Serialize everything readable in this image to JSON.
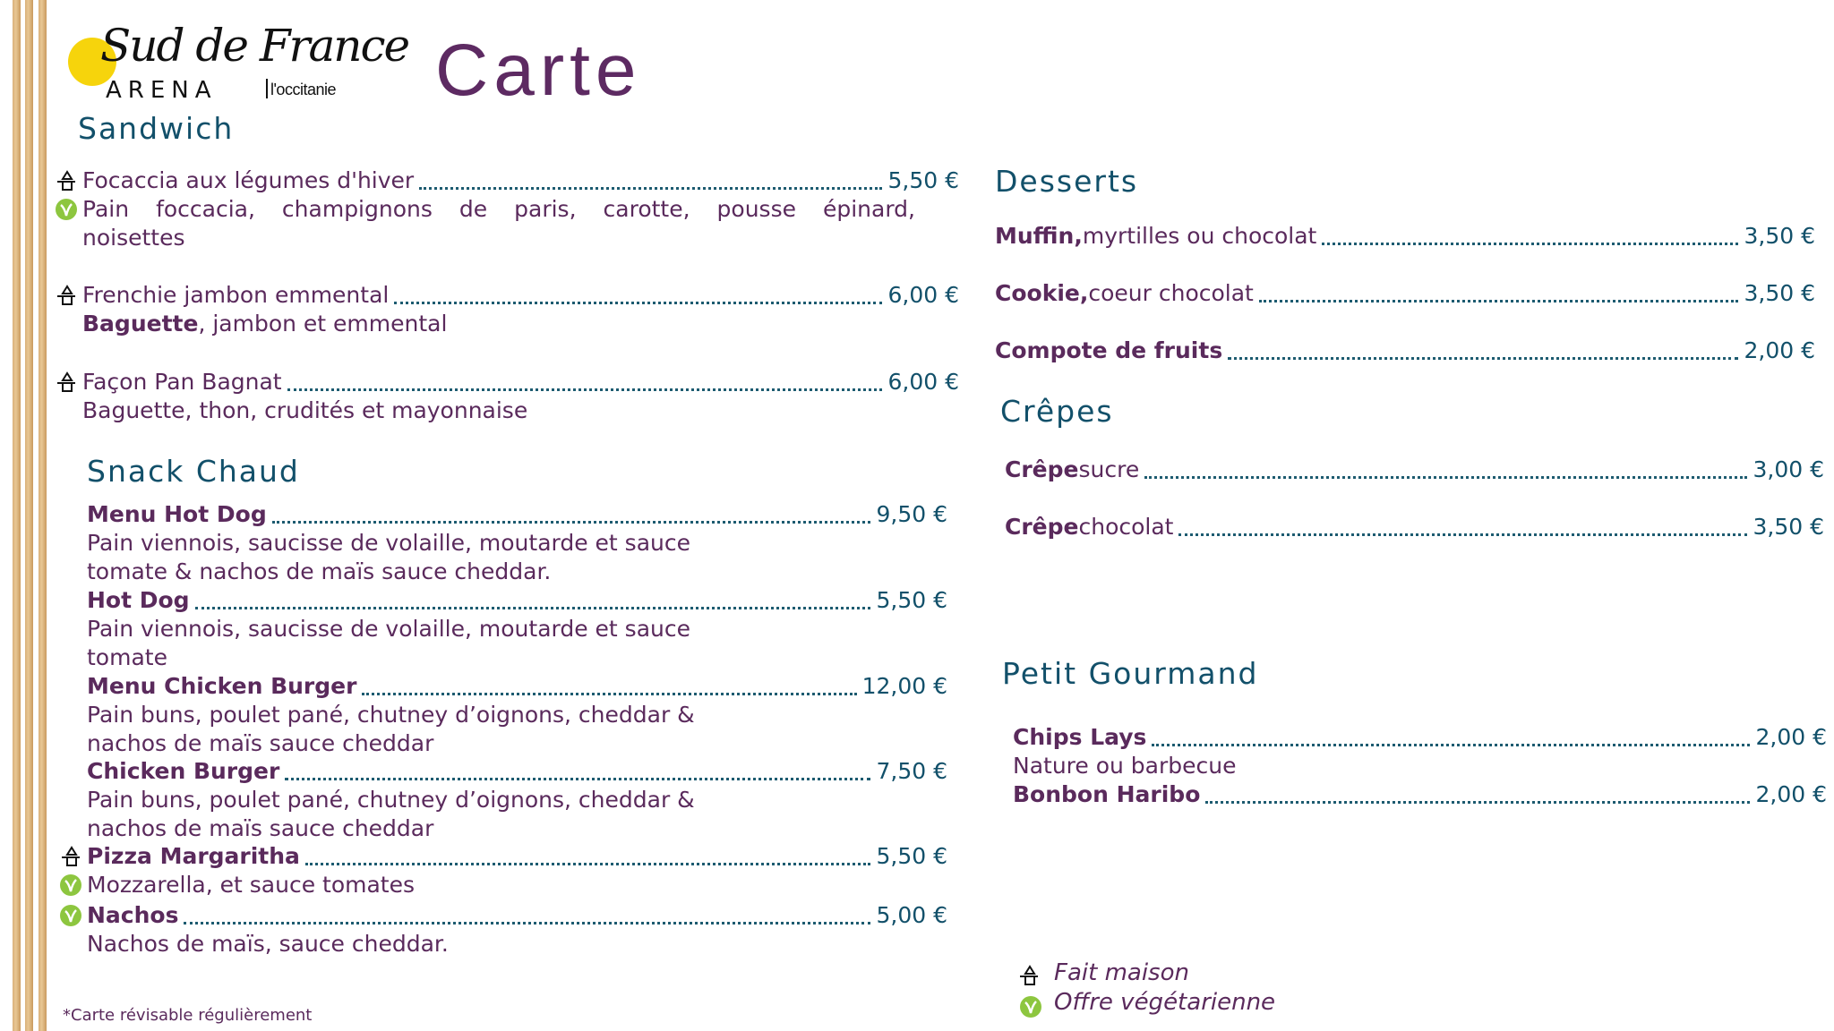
{
  "logo": {
    "script": "Sud de France",
    "arena": "ARENA",
    "region": "l'occitanie",
    "sun_color": "#f6d40c"
  },
  "title": "Carte",
  "colors": {
    "text": "#5a2a5c",
    "heading": "#12506a",
    "veg": "#8dc63f"
  },
  "sandwich": {
    "heading": "Sandwich",
    "items": [
      {
        "name": "Focaccia aux légumes d'hiver",
        "price": "5,50 €",
        "icons": [
          "fait-maison",
          "vegetarian"
        ],
        "desc": [
          "Pain foccacia, champignons de paris, carotte, pousse épinard,",
          "noisettes"
        ]
      },
      {
        "name": "Frenchie jambon emmental",
        "price": "6,00 €",
        "icons": [
          "fait-maison"
        ],
        "desc_bold": "Baguette",
        "desc": [
          ", jambon et emmental"
        ]
      },
      {
        "name": "Façon Pan Bagnat",
        "price": "6,00 €",
        "icons": [
          "fait-maison"
        ],
        "desc": [
          "Baguette, thon, crudités et mayonnaise"
        ]
      }
    ]
  },
  "snack": {
    "heading": "Snack Chaud",
    "items": [
      {
        "name": "Menu Hot Dog",
        "price": "9,50 €",
        "icons": [],
        "desc": [
          "Pain viennois, saucisse de volaille, moutarde et sauce",
          "tomate & nachos de maïs sauce cheddar."
        ]
      },
      {
        "name": "Hot Dog",
        "price": "5,50 €",
        "icons": [],
        "desc": [
          "Pain viennois, saucisse de volaille, moutarde et sauce",
          "tomate"
        ]
      },
      {
        "name": "Menu Chicken Burger",
        "price": "12,00 €",
        "icons": [],
        "desc": [
          "Pain buns, poulet pané, chutney d’oignons, cheddar &",
          "nachos de maïs sauce cheddar"
        ]
      },
      {
        "name": "Chicken Burger",
        "price": "7,50 €",
        "icons": [],
        "desc": [
          "Pain buns, poulet pané, chutney d’oignons, cheddar &",
          "nachos de maïs sauce cheddar"
        ]
      },
      {
        "name": "Pizza Margaritha",
        "price": "5,50 €",
        "icons": [
          "fait-maison",
          "vegetarian"
        ],
        "desc": [
          "Mozzarella, et sauce tomates"
        ]
      },
      {
        "name": "Nachos",
        "price": "5,00 €",
        "icons": [
          "vegetarian"
        ],
        "desc": [
          "Nachos de maïs, sauce cheddar."
        ]
      }
    ]
  },
  "desserts": {
    "heading": "Desserts",
    "items": [
      {
        "name": "Muffin,",
        "rest": " myrtilles ou chocolat",
        "price": "3,50 €"
      },
      {
        "name": "Cookie,",
        "rest": " coeur chocolat",
        "price": "3,50 €"
      },
      {
        "name": "Compote de fruits",
        "rest": "",
        "price": "2,00 €"
      }
    ]
  },
  "crepes": {
    "heading": "Crêpes",
    "items": [
      {
        "name": "Crêpe",
        "rest": " sucre",
        "price": "3,00 €"
      },
      {
        "name": "Crêpe",
        "rest": " chocolat",
        "price": "3,50 €"
      }
    ]
  },
  "petit": {
    "heading": "Petit Gourmand",
    "items": [
      {
        "name": "Chips Lays",
        "rest": "",
        "price": "2,00 €",
        "desc": [
          "Nature  ou barbecue"
        ]
      },
      {
        "name": "Bonbon Haribo",
        "rest": "",
        "price": "2,00 €"
      }
    ]
  },
  "legend": {
    "fait_maison": "Fait maison",
    "vegetarian": "Offre végétarienne"
  },
  "footnote": "*Carte révisable régulièrement"
}
